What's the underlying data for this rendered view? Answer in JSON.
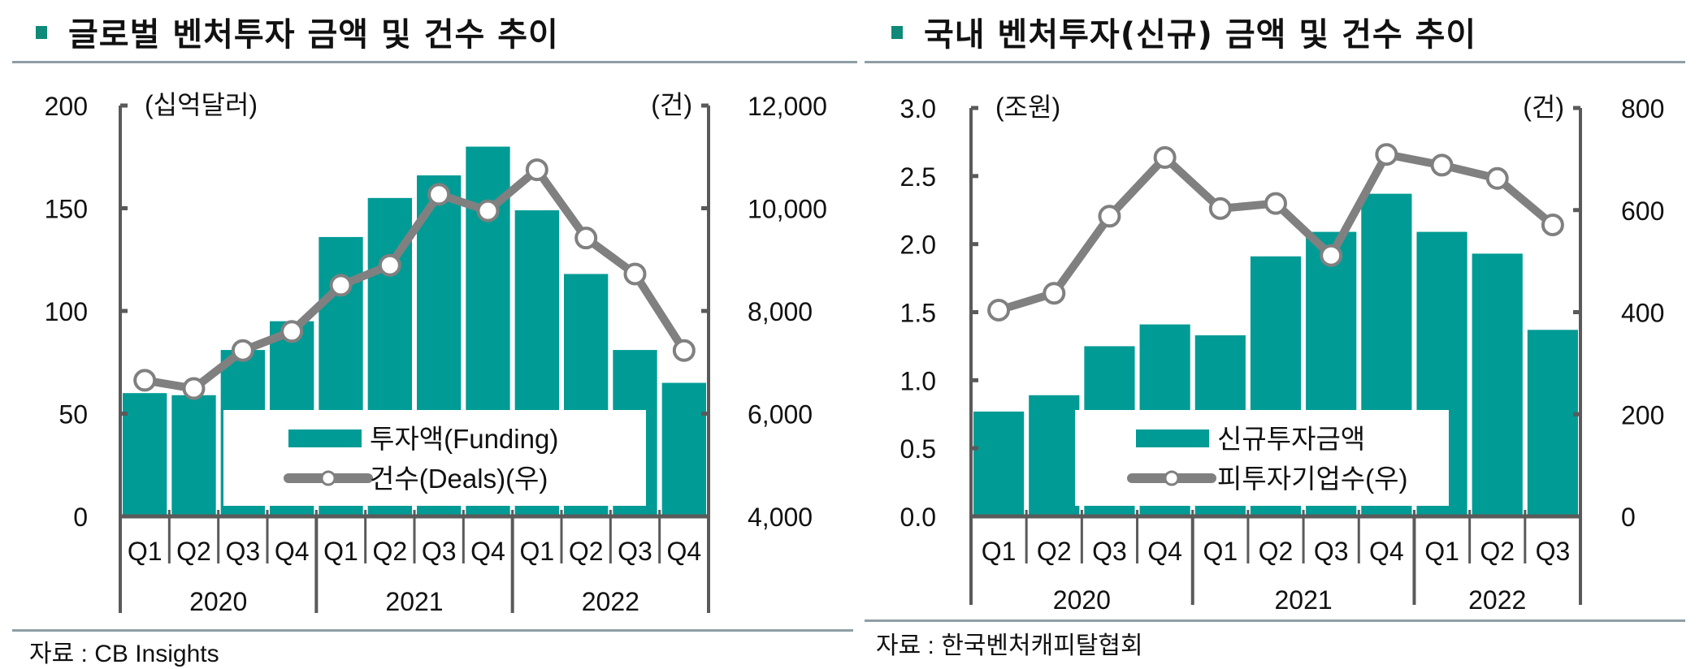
{
  "left": {
    "title": "글로벌 벤처투자 금액 및 건수 추이",
    "source": "자료 : CB Insights"
  },
  "right": {
    "title": "국내 벤처투자(신규) 금액 및 건수 추이",
    "source": "자료 : 한국벤처캐피탈협회"
  },
  "colors": {
    "bar": "#009b95",
    "line": "#808080",
    "marker_fill": "#ffffff",
    "axis": "#5a5a5a",
    "bullet": "#0f8a78",
    "rule": "#8e9ea4"
  },
  "chart_data": [
    {
      "type": "bar+line",
      "title": "글로벌 벤처투자 금액 및 건수 추이",
      "categories": [
        "Q1",
        "Q2",
        "Q3",
        "Q4",
        "Q1",
        "Q2",
        "Q3",
        "Q4",
        "Q1",
        "Q2",
        "Q3",
        "Q4"
      ],
      "groups": [
        {
          "label": "2020",
          "count": 4
        },
        {
          "label": "2021",
          "count": 4
        },
        {
          "label": "2022",
          "count": 4
        }
      ],
      "y_left": {
        "unit_label": "(십억달러)",
        "range": [
          0,
          200
        ],
        "ticks": [
          0,
          50,
          100,
          150,
          200
        ],
        "tick_labels": [
          "0",
          "50",
          "100",
          "150",
          "200"
        ]
      },
      "y_right": {
        "unit_label": "(건)",
        "range": [
          4000,
          12000
        ],
        "ticks": [
          4000,
          6000,
          8000,
          10000,
          12000
        ],
        "tick_labels": [
          "4,000",
          "6,000",
          "8,000",
          "10,000",
          "12,000"
        ]
      },
      "series": [
        {
          "name": "투자액(Funding)",
          "type": "bar",
          "axis": "left",
          "values": [
            60,
            59,
            81,
            95,
            136,
            155,
            166,
            180,
            149,
            118,
            81,
            65
          ]
        },
        {
          "name": "건수(Deals)(우)",
          "type": "line",
          "axis": "right",
          "values": [
            6650,
            6490,
            7230,
            7600,
            8500,
            8890,
            10270,
            9950,
            10750,
            9420,
            8720,
            7230
          ]
        }
      ],
      "legend": {
        "position": "bottom-center"
      },
      "grid": false
    },
    {
      "type": "bar+line",
      "title": "국내 벤처투자(신규) 금액 및 건수 추이",
      "categories": [
        "Q1",
        "Q2",
        "Q3",
        "Q4",
        "Q1",
        "Q2",
        "Q3",
        "Q4",
        "Q1",
        "Q2",
        "Q3"
      ],
      "groups": [
        {
          "label": "2020",
          "count": 4
        },
        {
          "label": "2021",
          "count": 4
        },
        {
          "label": "2022",
          "count": 3
        }
      ],
      "y_left": {
        "unit_label": "(조원)",
        "range": [
          0,
          3.0
        ],
        "ticks": [
          0,
          0.5,
          1.0,
          1.5,
          2.0,
          2.5,
          3.0
        ],
        "tick_labels": [
          "0.0",
          "0.5",
          "1.0",
          "1.5",
          "2.0",
          "2.5",
          "3.0"
        ]
      },
      "y_right": {
        "unit_label": "(건)",
        "range": [
          0,
          800
        ],
        "ticks": [
          0,
          200,
          400,
          600,
          800
        ],
        "tick_labels": [
          "0",
          "200",
          "400",
          "600",
          "800"
        ]
      },
      "series": [
        {
          "name": "신규투자금액",
          "type": "bar",
          "axis": "left",
          "values": [
            0.77,
            0.89,
            1.25,
            1.41,
            1.33,
            1.91,
            2.09,
            2.37,
            2.09,
            1.93,
            1.37
          ]
        },
        {
          "name": "피투자기업수(우)",
          "type": "line",
          "axis": "right",
          "values": [
            404,
            437,
            588,
            703,
            603,
            613,
            511,
            709,
            688,
            662,
            571
          ]
        }
      ],
      "legend": {
        "position": "bottom-center"
      },
      "grid": false
    }
  ]
}
